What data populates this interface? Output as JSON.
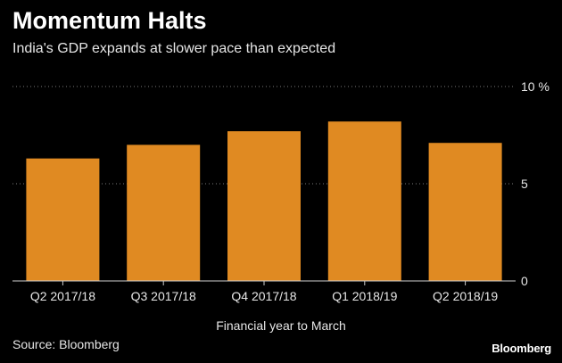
{
  "header": {
    "title": "Momentum Halts",
    "subtitle": "India's GDP expands at slower pace than expected"
  },
  "footer": {
    "source": "Source: Bloomberg",
    "brand": "Bloomberg"
  },
  "colors": {
    "bar": "#e08a22",
    "background": "#000000",
    "grid": "#7a7a7a",
    "text": "#e6e6e6"
  },
  "chart_data": {
    "type": "bar",
    "title": "Momentum Halts",
    "subtitle": "India's GDP expands at slower pace than expected",
    "xlabel": "Financial year to March",
    "ylabel": "",
    "categories": [
      "Q2 2017/18",
      "Q3 2017/18",
      "Q4 2017/18",
      "Q1 2018/19",
      "Q2 2018/19"
    ],
    "values": [
      6.3,
      7.0,
      7.7,
      8.2,
      7.1
    ],
    "ylim": [
      0,
      10
    ],
    "yticks": [
      0,
      5,
      10
    ],
    "ytick_labels": [
      "0",
      "5",
      "10 %"
    ],
    "grid": true,
    "axis_side": "right"
  }
}
